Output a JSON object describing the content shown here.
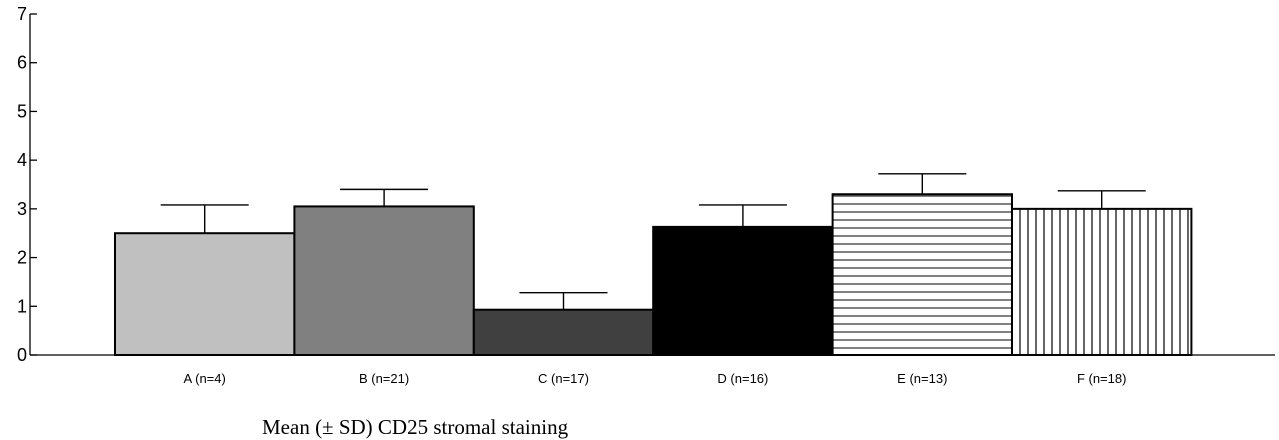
{
  "chart_data": {
    "type": "bar",
    "title": "",
    "caption": "Mean (± SD) CD25 stromal staining",
    "xlabel": "",
    "ylabel": "",
    "ylim": [
      0,
      7
    ],
    "yticks": [
      0,
      1,
      2,
      3,
      4,
      5,
      6,
      7
    ],
    "categories": [
      "A (n=4)",
      "B (n=21)",
      "C (n=17)",
      "D (n=16)",
      "E (n=13)",
      "F (n=18)"
    ],
    "values": [
      2.5,
      3.05,
      0.93,
      2.63,
      3.3,
      3.0
    ],
    "sd": [
      0.58,
      0.35,
      0.35,
      0.45,
      0.42,
      0.37
    ],
    "fills": [
      "#c0c0c0",
      "#808080",
      "#404040",
      "#000000",
      "hstripes",
      "vstripes"
    ],
    "grid": false,
    "legend": "none"
  }
}
